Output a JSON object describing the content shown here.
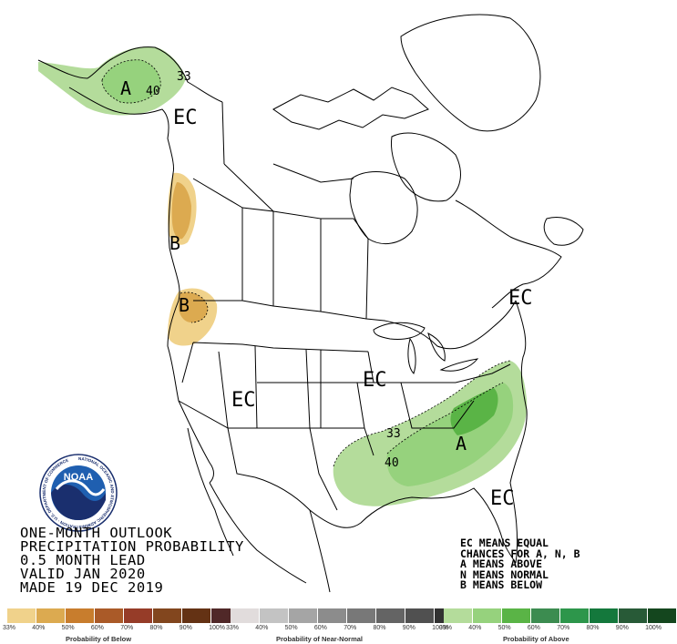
{
  "title": {
    "line1": "ONE-MONTH OUTLOOK",
    "line2": "PRECIPITATION PROBABILITY",
    "line3": "0.5 MONTH LEAD",
    "line4": "VALID JAN 2020",
    "line5": "MADE 19 DEC 2019"
  },
  "key": {
    "line1": "EC MEANS EQUAL",
    "line2": "CHANCES FOR A, N, B",
    "line3": "A MEANS ABOVE",
    "line4": "N MEANS NORMAL",
    "line5": "B MEANS BELOW"
  },
  "logo": {
    "name": "NOAA",
    "ring_text": "NATIONAL OCEANIC AND ATMOSPHERIC ADMINISTRATION · U.S. DEPARTMENT OF COMMERCE"
  },
  "map_labels": {
    "ec_alaska": "EC",
    "ec_west": "EC",
    "ec_central": "EC",
    "ec_northeast": "EC",
    "ec_florida": "EC",
    "a_alaska": "A",
    "a_southeast": "A",
    "b_bc": "B",
    "b_oregon": "B",
    "c_alaska_40": "40",
    "c_alaska_33": "33",
    "c_se_33": "33",
    "c_se_40": "40"
  },
  "colors": {
    "below": [
      "#f0d28b",
      "#dcaa50",
      "#c87d2d",
      "#aa5a28",
      "#963c28",
      "#82461e",
      "#643214",
      "#502828"
    ],
    "near_normal": [
      "#e1dcdc",
      "#c3c3c3",
      "#a5a5a5",
      "#8c8c8c",
      "#787878",
      "#646464",
      "#505050",
      "#323232"
    ],
    "above": [
      "#b4dc9b",
      "#96d27d",
      "#5ab446",
      "#3c8c50",
      "#2d964b",
      "#14783c",
      "#285a37",
      "#14461e"
    ]
  },
  "legends": {
    "below": {
      "caption": "Probability of Below",
      "ticks": [
        "33%",
        "40%",
        "50%",
        "60%",
        "70%",
        "80%",
        "90%",
        "100%"
      ]
    },
    "near_normal": {
      "caption": "Probability of Near-Normal",
      "ticks": [
        "33%",
        "40%",
        "50%",
        "60%",
        "70%",
        "80%",
        "90%",
        "100%"
      ]
    },
    "above": {
      "caption": "Probability of Above",
      "ticks": [
        "33%",
        "40%",
        "50%",
        "60%",
        "70%",
        "80%",
        "90%",
        "100%"
      ]
    }
  }
}
